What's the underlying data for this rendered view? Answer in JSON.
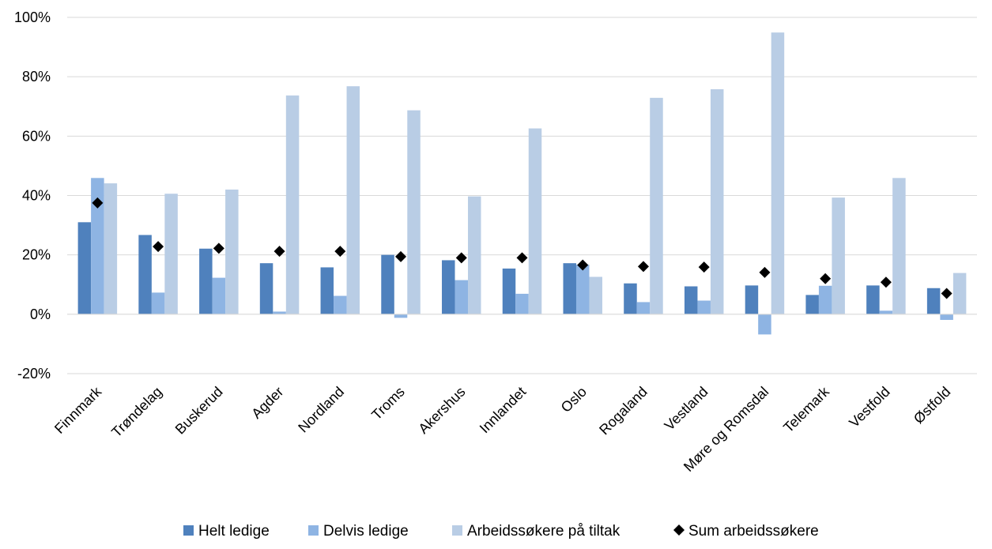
{
  "chart_data": {
    "type": "bar",
    "categories": [
      "Finnmark",
      "Trøndelag",
      "Buskerud",
      "Agder",
      "Nordland",
      "Troms",
      "Akershus",
      "Innlandet",
      "Oslo",
      "Rogaland",
      "Vestland",
      "Møre og Romsdal",
      "Telemark",
      "Vestfold",
      "Østfold"
    ],
    "series": [
      {
        "name": "Helt ledige",
        "kind": "bar",
        "color": "#4f81bd",
        "values": [
          31,
          26.7,
          22.1,
          17.2,
          15.8,
          20,
          18.2,
          15.4,
          17.2,
          10.4,
          9.4,
          9.7,
          6.5,
          9.7,
          8.8
        ]
      },
      {
        "name": "Delvis ledige",
        "kind": "bar",
        "color": "#8eb4e3",
        "values": [
          45.9,
          7.3,
          12.3,
          0.9,
          6.2,
          -1.2,
          11.5,
          6.9,
          16.7,
          4.1,
          4.6,
          -6.8,
          9.6,
          1.2,
          -1.9
        ]
      },
      {
        "name": "Arbeidssøkere på tiltak",
        "kind": "bar",
        "color": "#b9cde5",
        "values": [
          44.1,
          40.6,
          42,
          73.7,
          76.8,
          68.7,
          39.7,
          62.6,
          12.6,
          72.9,
          75.8,
          94.9,
          39.3,
          45.9,
          13.9
        ]
      },
      {
        "name": "Sum arbeidssøkere",
        "kind": "marker",
        "color": "#000000",
        "values": [
          37.5,
          22.8,
          22.2,
          21.2,
          21.2,
          19.4,
          19,
          19,
          16.6,
          16.1,
          15.9,
          14.1,
          12,
          10.8,
          7
        ]
      }
    ],
    "y_ticks": [
      "100%",
      "80%",
      "60%",
      "40%",
      "20%",
      "0%",
      "-20%"
    ],
    "ylim": [
      -20,
      100
    ],
    "grid": true,
    "legend_position": "bottom"
  }
}
